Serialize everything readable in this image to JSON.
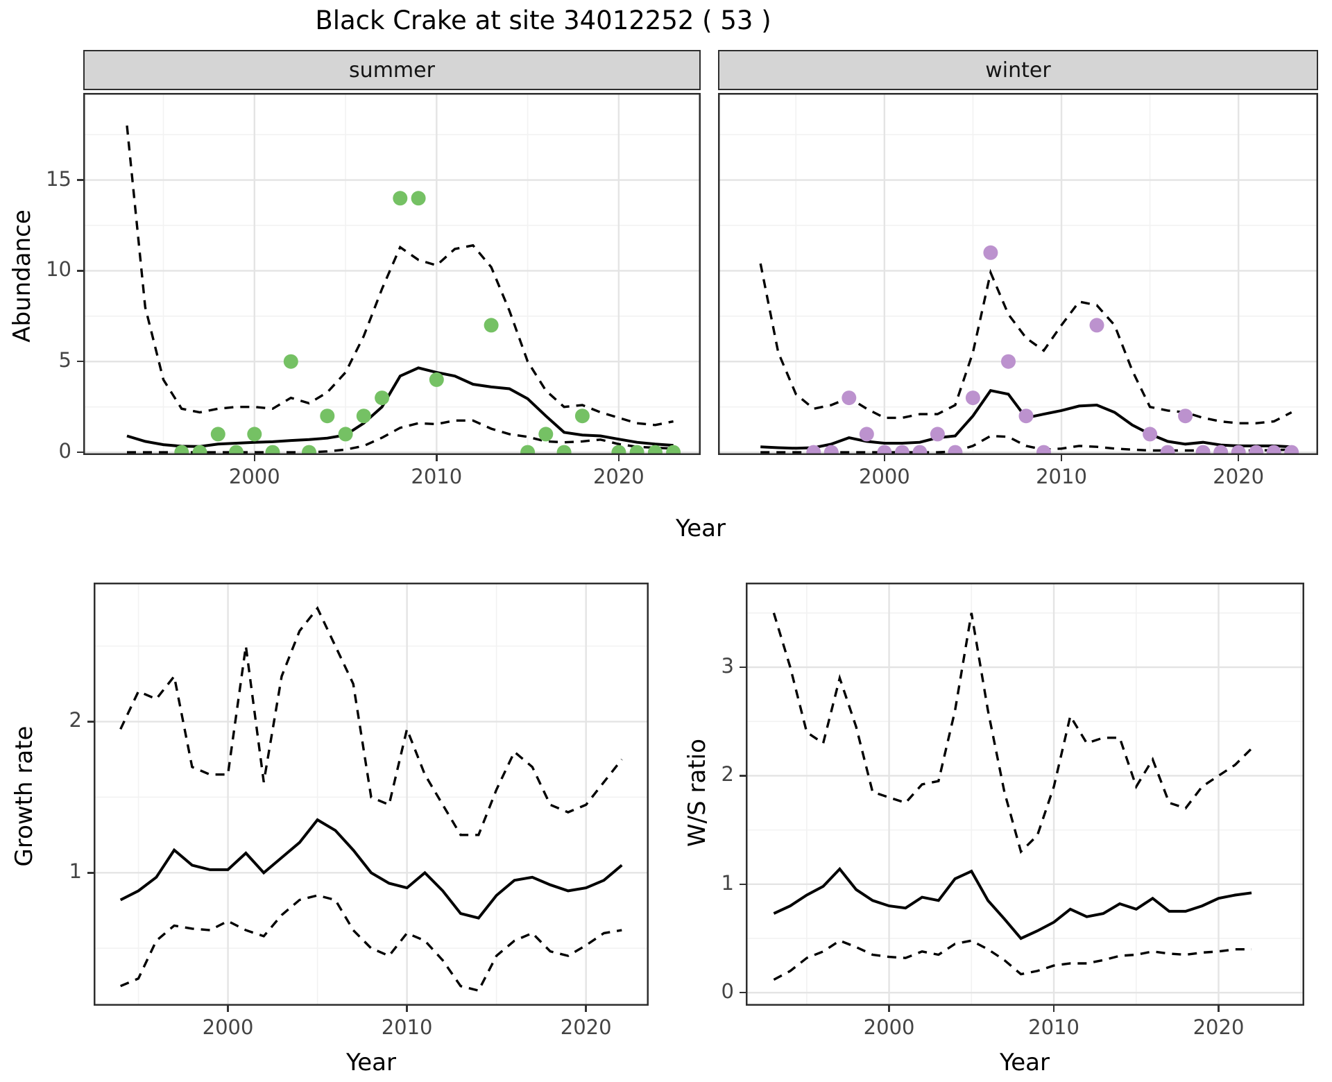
{
  "title": "Black Crake at site 34012252 ( 53 )",
  "colors": {
    "summer_point": "#75c164",
    "winter_point": "#bc92ce",
    "line": "#000000",
    "grid_major": "#e4e4e4",
    "grid_minor": "#f2f2f2",
    "strip_bg": "#d5d5d5",
    "panel_border": "#2e2e2e",
    "tick_text": "#444444"
  },
  "chart_data": [
    {
      "type": "line",
      "facet": "summer",
      "ylabel": "Abundance",
      "xlabel": "Year",
      "xlim": [
        1990.6,
        2024.5
      ],
      "ylim": [
        -0.15,
        19.8
      ],
      "x_ticks_major": [
        2000,
        2010,
        2020
      ],
      "x_ticks_minor": [
        1995,
        2005,
        2015
      ],
      "y_ticks_major": [
        0,
        5,
        10,
        15
      ],
      "y_ticks_minor": [
        2.5,
        7.5,
        12.5,
        17.5
      ],
      "years": [
        1993,
        1994,
        1995,
        1996,
        1997,
        1998,
        1999,
        2000,
        2001,
        2002,
        2003,
        2004,
        2005,
        2006,
        2007,
        2008,
        2009,
        2010,
        2011,
        2012,
        2013,
        2014,
        2015,
        2016,
        2017,
        2018,
        2019,
        2020,
        2021,
        2022,
        2023
      ],
      "series": [
        {
          "name": "median",
          "style": "solid",
          "values": [
            0.9,
            0.6,
            0.42,
            0.33,
            0.32,
            0.45,
            0.5,
            0.55,
            0.58,
            0.65,
            0.7,
            0.78,
            0.95,
            1.6,
            2.5,
            4.2,
            4.65,
            4.4,
            4.2,
            3.75,
            3.6,
            3.5,
            2.95,
            2.0,
            1.1,
            0.95,
            0.9,
            0.72,
            0.55,
            0.45,
            0.38
          ]
        },
        {
          "name": "upper CI",
          "style": "dashed",
          "values": [
            18.0,
            8.0,
            4.0,
            2.4,
            2.2,
            2.4,
            2.5,
            2.5,
            2.4,
            3.0,
            2.7,
            3.3,
            4.4,
            6.4,
            9.0,
            11.3,
            10.6,
            10.3,
            11.2,
            11.4,
            10.2,
            7.8,
            5.0,
            3.4,
            2.5,
            2.6,
            2.2,
            1.9,
            1.6,
            1.5,
            1.7
          ]
        },
        {
          "name": "lower CI",
          "style": "dashed",
          "values": [
            0.0,
            0.0,
            0.0,
            0.0,
            0.0,
            0.0,
            0.0,
            0.0,
            0.0,
            0.0,
            0.0,
            0.05,
            0.15,
            0.35,
            0.8,
            1.35,
            1.6,
            1.55,
            1.75,
            1.75,
            1.3,
            1.0,
            0.85,
            0.6,
            0.55,
            0.6,
            0.7,
            0.45,
            0.3,
            0.25,
            0.2
          ]
        }
      ],
      "points": {
        "years": [
          1996,
          1997,
          1998,
          1999,
          2000,
          2001,
          2002,
          2003,
          2004,
          2005,
          2006,
          2007,
          2008,
          2009,
          2010,
          2013,
          2015,
          2016,
          2017,
          2018,
          2020,
          2021,
          2022,
          2023
        ],
        "values": [
          0,
          0,
          1,
          0,
          1,
          0,
          5,
          0,
          2,
          1,
          2,
          3,
          14,
          14,
          4,
          7,
          0,
          1,
          0,
          2,
          0,
          0,
          0,
          0
        ],
        "color": "#75c164"
      }
    },
    {
      "type": "line",
      "facet": "winter",
      "xlim": [
        1990.6,
        2024.5
      ],
      "ylim": [
        -0.15,
        19.8
      ],
      "x_ticks_major": [
        2000,
        2010,
        2020
      ],
      "x_ticks_minor": [
        1995,
        2005,
        2015
      ],
      "y_ticks_major": [
        0,
        5,
        10,
        15
      ],
      "y_ticks_minor": [
        2.5,
        7.5,
        12.5,
        17.5
      ],
      "years": [
        1993,
        1994,
        1995,
        1996,
        1997,
        1998,
        1999,
        2000,
        2001,
        2002,
        2003,
        2004,
        2005,
        2006,
        2007,
        2008,
        2009,
        2010,
        2011,
        2012,
        2013,
        2014,
        2015,
        2016,
        2017,
        2018,
        2019,
        2020,
        2021,
        2022,
        2023
      ],
      "series": [
        {
          "name": "median",
          "style": "solid",
          "values": [
            0.3,
            0.25,
            0.22,
            0.25,
            0.45,
            0.8,
            0.6,
            0.5,
            0.5,
            0.55,
            0.8,
            0.9,
            2.0,
            3.4,
            3.2,
            1.9,
            2.1,
            2.3,
            2.55,
            2.6,
            2.2,
            1.5,
            1.0,
            0.6,
            0.45,
            0.55,
            0.4,
            0.35,
            0.35,
            0.35,
            0.3
          ]
        },
        {
          "name": "upper CI",
          "style": "dashed",
          "values": [
            10.4,
            5.5,
            3.2,
            2.4,
            2.6,
            3.0,
            2.4,
            1.9,
            1.9,
            2.1,
            2.1,
            2.6,
            5.5,
            9.9,
            7.6,
            6.3,
            5.6,
            7.0,
            8.3,
            8.1,
            7.0,
            4.5,
            2.5,
            2.3,
            2.2,
            1.9,
            1.7,
            1.6,
            1.6,
            1.7,
            2.2
          ]
        },
        {
          "name": "lower CI",
          "style": "dashed",
          "values": [
            0.0,
            0.0,
            0.0,
            0.0,
            0.0,
            0.0,
            0.0,
            0.0,
            0.0,
            0.0,
            0.0,
            0.05,
            0.35,
            0.9,
            0.85,
            0.35,
            0.15,
            0.2,
            0.35,
            0.3,
            0.2,
            0.15,
            0.1,
            0.1,
            0.1,
            0.1,
            0.1,
            0.1,
            0.1,
            0.12,
            0.15
          ]
        }
      ],
      "points": {
        "years": [
          1996,
          1997,
          1998,
          1999,
          2000,
          2001,
          2002,
          2003,
          2004,
          2005,
          2006,
          2007,
          2008,
          2009,
          2012,
          2015,
          2016,
          2017,
          2018,
          2019,
          2020,
          2021,
          2022,
          2023
        ],
        "values": [
          0,
          0,
          3,
          1,
          0,
          0,
          0,
          1,
          0,
          3,
          11,
          5,
          2,
          0,
          7,
          1,
          0,
          2,
          0,
          0,
          0,
          0,
          0,
          0
        ],
        "color": "#bc92ce"
      }
    },
    {
      "type": "line",
      "ylabel": "Growth rate",
      "xlabel": "Year",
      "xlim": [
        1992.5,
        2023.5
      ],
      "ylim": [
        0.12,
        2.92
      ],
      "x_ticks_major": [
        2000,
        2010,
        2020
      ],
      "x_ticks_minor": [
        1995,
        2005,
        2015
      ],
      "y_ticks_major": [
        1,
        2
      ],
      "y_ticks_minor": [
        0.5,
        1.5,
        2.5
      ],
      "years": [
        1994,
        1995,
        1996,
        1997,
        1998,
        1999,
        2000,
        2001,
        2002,
        2003,
        2004,
        2005,
        2006,
        2007,
        2008,
        2009,
        2010,
        2011,
        2012,
        2013,
        2014,
        2015,
        2016,
        2017,
        2018,
        2019,
        2020,
        2021,
        2022
      ],
      "series": [
        {
          "name": "median",
          "style": "solid",
          "values": [
            0.82,
            0.88,
            0.97,
            1.15,
            1.05,
            1.02,
            1.02,
            1.13,
            1.0,
            1.1,
            1.2,
            1.35,
            1.28,
            1.15,
            1.0,
            0.93,
            0.9,
            1.0,
            0.88,
            0.73,
            0.7,
            0.85,
            0.95,
            0.97,
            0.92,
            0.88,
            0.9,
            0.95,
            1.05
          ]
        },
        {
          "name": "upper CI",
          "style": "dashed",
          "values": [
            1.95,
            2.2,
            2.15,
            2.3,
            1.7,
            1.65,
            1.65,
            2.5,
            1.6,
            2.3,
            2.6,
            2.75,
            2.5,
            2.25,
            1.5,
            1.45,
            1.95,
            1.65,
            1.45,
            1.25,
            1.25,
            1.55,
            1.8,
            1.7,
            1.45,
            1.4,
            1.45,
            1.6,
            1.75
          ]
        },
        {
          "name": "lower CI",
          "style": "dashed",
          "values": [
            0.25,
            0.3,
            0.55,
            0.65,
            0.63,
            0.62,
            0.68,
            0.62,
            0.58,
            0.72,
            0.82,
            0.85,
            0.82,
            0.62,
            0.5,
            0.45,
            0.6,
            0.55,
            0.42,
            0.25,
            0.22,
            0.45,
            0.55,
            0.6,
            0.48,
            0.45,
            0.52,
            0.6,
            0.62
          ]
        }
      ]
    },
    {
      "type": "line",
      "ylabel": "W/S ratio",
      "xlabel": "Year",
      "xlim": [
        1991.3,
        2025.2
      ],
      "ylim": [
        -0.12,
        3.78
      ],
      "x_ticks_major": [
        2000,
        2010,
        2020
      ],
      "x_ticks_minor": [
        1995,
        2005,
        2015,
        2025
      ],
      "y_ticks_major": [
        0,
        1,
        2,
        3
      ],
      "y_ticks_minor": [
        0.5,
        1.5,
        2.5,
        3.5
      ],
      "years": [
        1993,
        1994,
        1995,
        1996,
        1997,
        1998,
        1999,
        2000,
        2001,
        2002,
        2003,
        2004,
        2005,
        2006,
        2007,
        2008,
        2009,
        2010,
        2011,
        2012,
        2013,
        2014,
        2015,
        2016,
        2017,
        2018,
        2019,
        2020,
        2021,
        2022
      ],
      "series": [
        {
          "name": "median",
          "style": "solid",
          "values": [
            0.73,
            0.8,
            0.9,
            0.98,
            1.14,
            0.95,
            0.85,
            0.8,
            0.78,
            0.88,
            0.85,
            1.05,
            1.12,
            0.85,
            0.68,
            0.5,
            0.57,
            0.65,
            0.77,
            0.7,
            0.73,
            0.82,
            0.77,
            0.87,
            0.75,
            0.75,
            0.8,
            0.87,
            0.9,
            0.92
          ]
        },
        {
          "name": "upper CI",
          "style": "dashed",
          "values": [
            3.5,
            3.0,
            2.4,
            2.3,
            2.9,
            2.45,
            1.85,
            1.8,
            1.75,
            1.92,
            1.95,
            2.6,
            3.5,
            2.6,
            1.85,
            1.3,
            1.45,
            1.9,
            2.55,
            2.3,
            2.35,
            2.35,
            1.9,
            2.15,
            1.75,
            1.7,
            1.9,
            2.0,
            2.1,
            2.25
          ]
        },
        {
          "name": "lower CI",
          "style": "dashed",
          "values": [
            0.12,
            0.2,
            0.32,
            0.38,
            0.48,
            0.42,
            0.35,
            0.33,
            0.32,
            0.38,
            0.35,
            0.45,
            0.48,
            0.4,
            0.3,
            0.17,
            0.2,
            0.25,
            0.27,
            0.27,
            0.3,
            0.34,
            0.35,
            0.38,
            0.36,
            0.35,
            0.37,
            0.38,
            0.4,
            0.4
          ]
        }
      ]
    }
  ]
}
